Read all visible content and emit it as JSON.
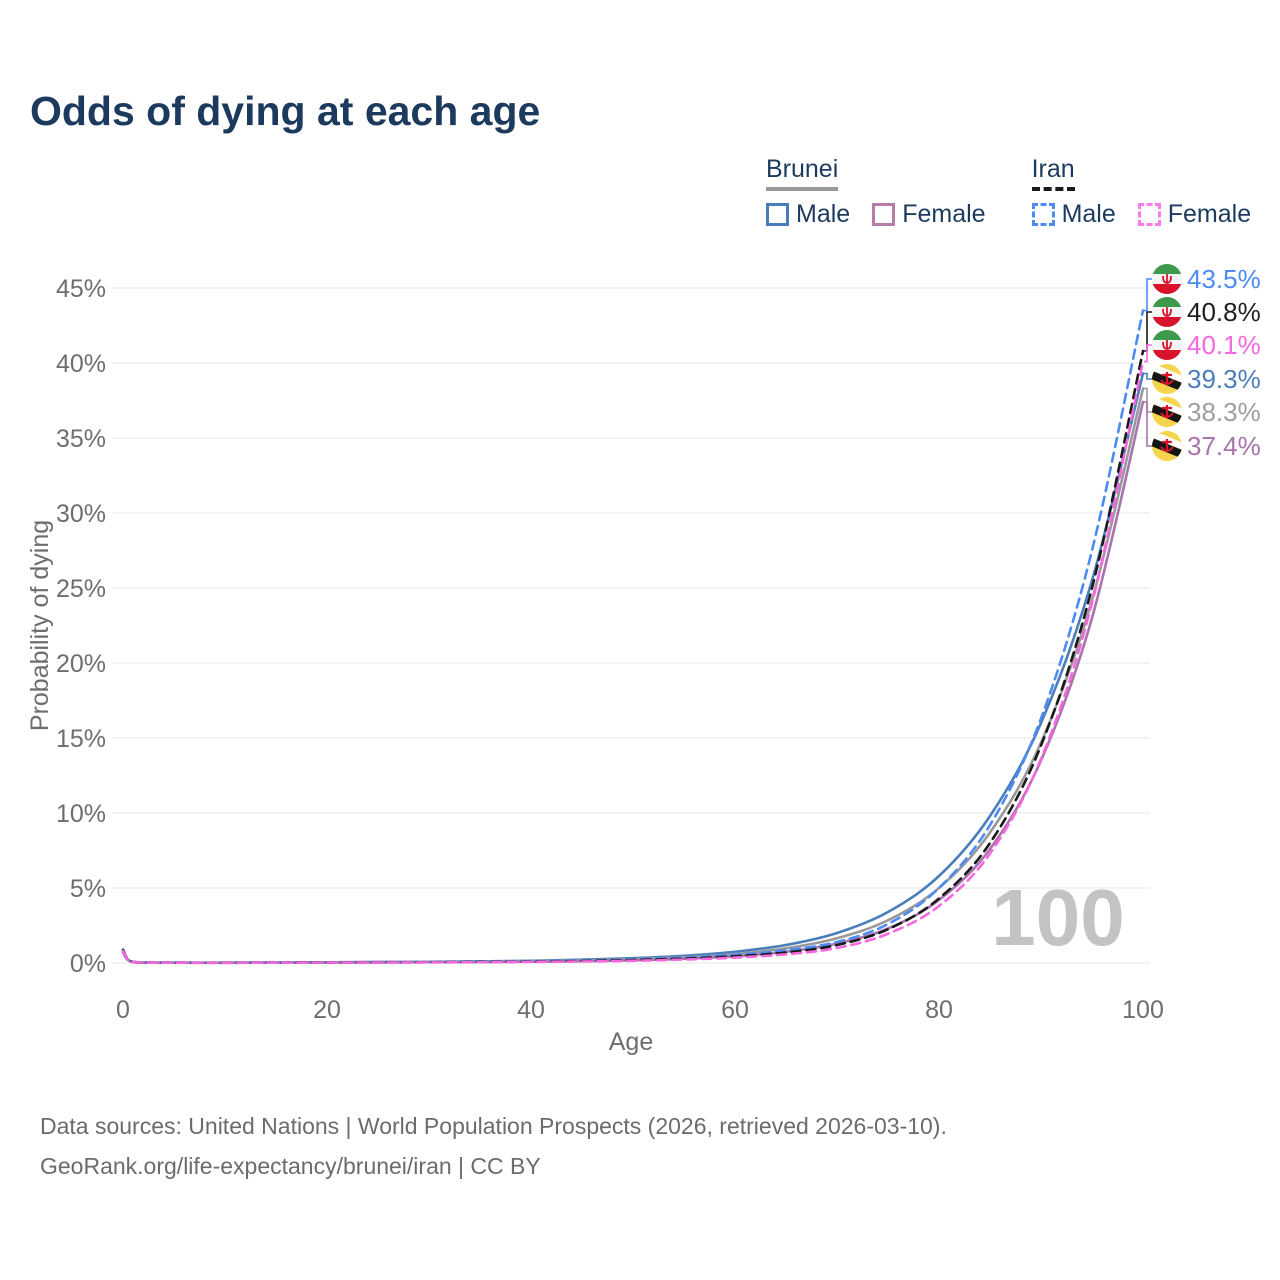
{
  "title": "Odds of dying at each age",
  "legend": {
    "groups": [
      {
        "label": "Brunei",
        "style": "solid",
        "underline_color": "#999999",
        "items": [
          {
            "label": "Male",
            "color": "#4a7ebb"
          },
          {
            "label": "Female",
            "color": "#b87ca8"
          }
        ]
      },
      {
        "label": "Iran",
        "style": "dashed",
        "underline_color": "#1a1a1a",
        "items": [
          {
            "label": "Male",
            "color": "#4c8bf5"
          },
          {
            "label": "Female",
            "color": "#fb7be8"
          }
        ]
      }
    ]
  },
  "watermark": "100",
  "footer": {
    "line1": "Data sources: United Nations | World Population Prospects (2026, retrieved 2026-03-10).",
    "line2": "GeoRank.org/life-expectancy/brunei/iran | CC BY"
  },
  "chart_data": {
    "type": "line",
    "title": "Odds of dying at each age",
    "xlabel": "Age",
    "ylabel": "Probability of dying",
    "xlim": [
      0,
      100
    ],
    "ylim_percent": [
      0,
      45
    ],
    "x_ticks": [
      0,
      20,
      40,
      60,
      80,
      100
    ],
    "y_ticks_percent": [
      0,
      5,
      10,
      15,
      20,
      25,
      30,
      35,
      40,
      45
    ],
    "grid": "horizontal",
    "legend_position": "top-right",
    "ages": [
      0,
      1,
      5,
      10,
      15,
      20,
      25,
      30,
      35,
      40,
      45,
      50,
      55,
      60,
      65,
      70,
      75,
      80,
      85,
      90,
      95,
      100
    ],
    "series": [
      {
        "name": "Brunei Male",
        "country": "Brunei",
        "sex": "Male",
        "style": "solid",
        "color": "#4a7ebb",
        "values": [
          0.8,
          0.06,
          0.02,
          0.02,
          0.03,
          0.05,
          0.07,
          0.08,
          0.11,
          0.15,
          0.22,
          0.32,
          0.48,
          0.75,
          1.2,
          2.0,
          3.4,
          5.8,
          9.8,
          16.0,
          25.5,
          39.3
        ]
      },
      {
        "name": "Brunei Combined",
        "country": "Brunei",
        "sex": "Both",
        "style": "solid",
        "color": "#999999",
        "values": [
          0.75,
          0.055,
          0.02,
          0.018,
          0.025,
          0.04,
          0.055,
          0.065,
          0.085,
          0.12,
          0.17,
          0.25,
          0.38,
          0.6,
          0.98,
          1.65,
          2.85,
          5.0,
          8.7,
          14.7,
          24.2,
          38.3
        ]
      },
      {
        "name": "Brunei Female",
        "country": "Brunei",
        "sex": "Female",
        "style": "solid",
        "color": "#a973ae",
        "values": [
          0.7,
          0.05,
          0.02,
          0.015,
          0.02,
          0.03,
          0.04,
          0.05,
          0.06,
          0.09,
          0.12,
          0.18,
          0.28,
          0.45,
          0.75,
          1.3,
          2.3,
          4.2,
          7.6,
          13.5,
          23.0,
          37.4
        ]
      },
      {
        "name": "Iran Male",
        "country": "Iran",
        "sex": "Male",
        "style": "dashed",
        "color": "#4c8bf5",
        "values": [
          0.9,
          0.07,
          0.025,
          0.02,
          0.03,
          0.04,
          0.05,
          0.06,
          0.08,
          0.11,
          0.16,
          0.24,
          0.35,
          0.55,
          0.85,
          1.4,
          2.6,
          5.0,
          9.2,
          16.3,
          27.5,
          43.5
        ]
      },
      {
        "name": "Iran Combined",
        "country": "Iran",
        "sex": "Both",
        "style": "dashed",
        "color": "#1a1a1a",
        "values": [
          0.85,
          0.065,
          0.022,
          0.018,
          0.025,
          0.032,
          0.04,
          0.05,
          0.065,
          0.09,
          0.13,
          0.2,
          0.29,
          0.45,
          0.7,
          1.2,
          2.25,
          4.3,
          8.0,
          14.5,
          25.0,
          40.8
        ]
      },
      {
        "name": "Iran Female",
        "country": "Iran",
        "sex": "Female",
        "style": "dashed",
        "color": "#f768df",
        "values": [
          0.8,
          0.06,
          0.02,
          0.015,
          0.02,
          0.026,
          0.032,
          0.04,
          0.05,
          0.07,
          0.1,
          0.15,
          0.23,
          0.36,
          0.58,
          1.0,
          1.95,
          3.8,
          7.3,
          13.6,
          24.0,
          40.1
        ]
      }
    ],
    "end_labels": [
      {
        "label": "43.5%",
        "series": "Iran Male",
        "flag": "iran",
        "color": "#4c8bf5",
        "value_percent": 43.5
      },
      {
        "label": "40.8%",
        "series": "Iran Combined",
        "flag": "iran",
        "color": "#1f1f1f",
        "value_percent": 40.8
      },
      {
        "label": "40.1%",
        "series": "Iran Female",
        "flag": "iran",
        "color": "#f768df",
        "value_percent": 40.1
      },
      {
        "label": "39.3%",
        "series": "Brunei Male",
        "flag": "brunei",
        "color": "#4a7ebb",
        "value_percent": 39.3
      },
      {
        "label": "38.3%",
        "series": "Brunei Combined",
        "flag": "brunei",
        "color": "#9e9e9e",
        "value_percent": 38.3
      },
      {
        "label": "37.4%",
        "series": "Brunei Female",
        "flag": "brunei",
        "color": "#a973ae",
        "value_percent": 37.4
      }
    ]
  }
}
